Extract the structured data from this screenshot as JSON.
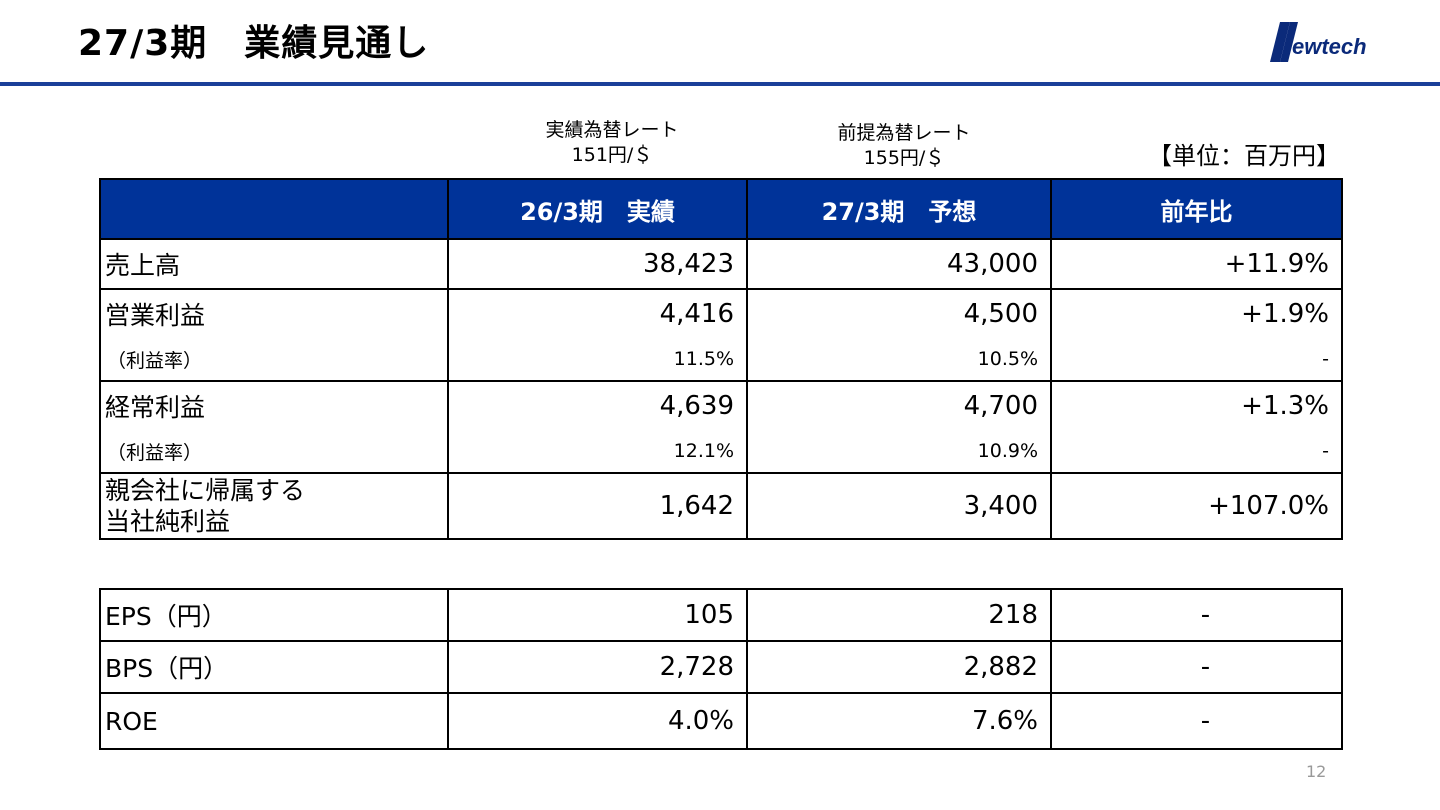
{
  "title": "27/3期　業績見通し",
  "logo_text": "Newtech",
  "rates": {
    "actual_label": "実績為替レート",
    "actual_value": "151円/＄",
    "assumed_label": "前提為替レート",
    "assumed_value": "155円/＄"
  },
  "unit": "【単位：百万円】",
  "table": {
    "headers": [
      "",
      "26/3期　実績",
      "27/3期　予想",
      "前年比"
    ],
    "rows": [
      {
        "label": "売上高",
        "actual": "38,423",
        "forecast": "43,000",
        "yoy": "+11.9%"
      },
      {
        "label": "営業利益",
        "actual": "4,416",
        "forecast": "4,500",
        "yoy": "+1.9%"
      },
      {
        "label": "（利益率）",
        "actual": "11.5%",
        "forecast": "10.5%",
        "yoy": "-"
      },
      {
        "label": "経常利益",
        "actual": "4,639",
        "forecast": "4,700",
        "yoy": "+1.3%"
      },
      {
        "label": "（利益率）",
        "actual": "12.1%",
        "forecast": "10.9%",
        "yoy": "-"
      },
      {
        "label_line1": "親会社に帰属する",
        "label_line2": "当社純利益",
        "actual": "1,642",
        "forecast": "3,400",
        "yoy": "+107.0%"
      }
    ]
  },
  "per_share": [
    {
      "label": "EPS（円）",
      "actual": "105",
      "forecast": "218",
      "yoy": "-"
    },
    {
      "label": "BPS（円）",
      "actual": "2,728",
      "forecast": "2,882",
      "yoy": "-"
    },
    {
      "label": "ROE",
      "actual": "4.0%",
      "forecast": "7.6%",
      "yoy": "-"
    }
  ],
  "page_number": "12",
  "colors": {
    "accent": "#003399",
    "rule": "#1a3f99",
    "logo": "#0b2a7a"
  }
}
